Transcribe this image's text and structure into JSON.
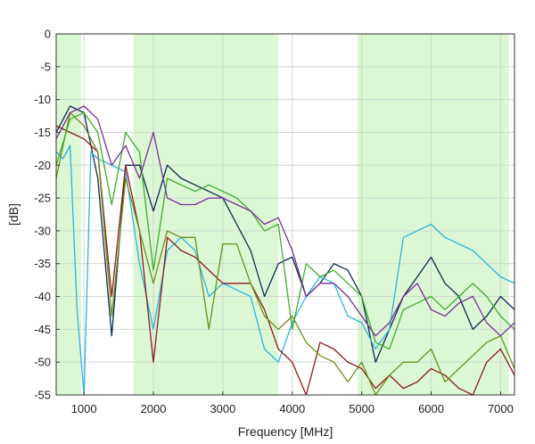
{
  "chart_data": {
    "type": "line",
    "xlabel": "Frequency [MHz]",
    "ylabel": "[dB]",
    "xlim": [
      600,
      7200
    ],
    "ylim": [
      -55,
      0
    ],
    "grid": true,
    "x_ticks": [
      1000,
      2000,
      3000,
      4000,
      5000,
      6000,
      7000
    ],
    "y_ticks": [
      0,
      -5,
      -10,
      -15,
      -20,
      -25,
      -30,
      -35,
      -40,
      -45,
      -50,
      -55
    ],
    "shaded_bands": [
      {
        "start": 600,
        "end": 960,
        "color": "#dcf7d4"
      },
      {
        "start": 1710,
        "end": 3800,
        "color": "#dcf7d4"
      },
      {
        "start": 4940,
        "end": 7120,
        "color": "#dcf7d4"
      }
    ],
    "series": [
      {
        "color": "#0d2a4f",
        "x": [
          600,
          800,
          1000,
          1200,
          1400,
          1600,
          1800,
          2000,
          2200,
          2400,
          2600,
          2800,
          3000,
          3200,
          3400,
          3600,
          3800,
          4000,
          4200,
          4400,
          4600,
          4800,
          5000,
          5200,
          5400,
          5600,
          5800,
          6000,
          6200,
          6400,
          6600,
          6800,
          7000,
          7200
        ],
        "y": [
          -15,
          -11,
          -12,
          -22,
          -46,
          -20,
          -20,
          -27,
          -20,
          -22,
          -23,
          -24,
          -25,
          -29,
          -33,
          -40,
          -35,
          -34,
          -40,
          -38,
          -35,
          -36,
          -40,
          -50,
          -45,
          -40,
          -37,
          -34,
          -38,
          -40,
          -45,
          -43,
          -40,
          -42
        ]
      },
      {
        "color": "#2bb3e0",
        "x": [
          600,
          700,
          800,
          900,
          1000,
          1100,
          1200,
          1400,
          1600,
          1800,
          2000,
          2200,
          2400,
          2600,
          2800,
          3000,
          3200,
          3400,
          3600,
          3800,
          4000,
          4200,
          4400,
          4600,
          4800,
          5000,
          5200,
          5400,
          5600,
          5800,
          6000,
          6200,
          6400,
          6600,
          6800,
          7000,
          7200
        ],
        "y": [
          -18,
          -19,
          -17,
          -42,
          -55,
          -18,
          -19,
          -20,
          -21,
          -35,
          -45,
          -33,
          -31,
          -33,
          -40,
          -38,
          -39,
          -40,
          -48,
          -50,
          -44,
          -40,
          -37,
          -38,
          -43,
          -44,
          -48,
          -45,
          -31,
          -30,
          -29,
          -31,
          -32,
          -33,
          -35,
          -37,
          -38
        ]
      },
      {
        "color": "#8b1a1a",
        "x": [
          600,
          800,
          1000,
          1200,
          1400,
          1600,
          1800,
          2000,
          2200,
          2400,
          2600,
          2800,
          3000,
          3200,
          3400,
          3600,
          3800,
          4000,
          4200,
          4400,
          4600,
          4800,
          5000,
          5200,
          5400,
          5600,
          5800,
          6000,
          6200,
          6400,
          6600,
          6800,
          7000,
          7200
        ],
        "y": [
          -14,
          -15,
          -16,
          -18,
          -40,
          -20,
          -30,
          -50,
          -31,
          -33,
          -34,
          -36,
          -38,
          -38,
          -38,
          -42,
          -48,
          -50,
          -55,
          -47,
          -48,
          -50,
          -51,
          -54,
          -52,
          -54,
          -53,
          -51,
          -52,
          -54,
          -55,
          -50,
          -48,
          -52
        ]
      },
      {
        "color": "#6c8f1c",
        "x": [
          600,
          800,
          1000,
          1200,
          1400,
          1600,
          1800,
          2000,
          2200,
          2400,
          2600,
          2800,
          3000,
          3200,
          3400,
          3600,
          3800,
          4000,
          4200,
          4400,
          4600,
          4800,
          5000,
          5200,
          5400,
          5600,
          5800,
          6000,
          6200,
          6400,
          6600,
          6800,
          7000,
          7200
        ],
        "y": [
          -22,
          -12,
          -14,
          -18,
          -43,
          -22,
          -30,
          -38,
          -30,
          -31,
          -31,
          -45,
          -32,
          -32,
          -38,
          -43,
          -45,
          -43,
          -47,
          -49,
          -50,
          -53,
          -50,
          -55,
          -52,
          -50,
          -50,
          -48,
          -53,
          -51,
          -49,
          -47,
          -46,
          -51
        ]
      },
      {
        "color": "#3dae2b",
        "x": [
          600,
          800,
          1000,
          1200,
          1400,
          1600,
          1800,
          2000,
          2200,
          2400,
          2600,
          2800,
          3000,
          3200,
          3400,
          3600,
          3800,
          4000,
          4200,
          4400,
          4600,
          4800,
          5000,
          5200,
          5400,
          5600,
          5800,
          6000,
          6200,
          6400,
          6600,
          6800,
          7000,
          7200
        ],
        "y": [
          -20,
          -13,
          -12,
          -15,
          -26,
          -15,
          -18,
          -36,
          -22,
          -23,
          -24,
          -23,
          -24,
          -25,
          -27,
          -30,
          -29,
          -45,
          -35,
          -37,
          -36,
          -38,
          -40,
          -47,
          -48,
          -42,
          -41,
          -40,
          -42,
          -40,
          -38,
          -40,
          -43,
          -45
        ]
      },
      {
        "color": "#7a2e9a",
        "x": [
          600,
          800,
          1000,
          1200,
          1400,
          1600,
          1800,
          2000,
          2200,
          2400,
          2600,
          2800,
          3000,
          3200,
          3400,
          3600,
          3800,
          4000,
          4200,
          4400,
          4600,
          4800,
          5000,
          5200,
          5400,
          5600,
          5800,
          6000,
          6200,
          6400,
          6600,
          6800,
          7000,
          7200
        ],
        "y": [
          -16,
          -12,
          -11,
          -13,
          -20,
          -17,
          -22,
          -15,
          -25,
          -26,
          -26,
          -25,
          -25,
          -26,
          -27,
          -29,
          -28,
          -33,
          -40,
          -38,
          -38,
          -40,
          -43,
          -46,
          -44,
          -40,
          -38,
          -42,
          -43,
          -41,
          -40,
          -44,
          -46,
          -44
        ]
      }
    ]
  }
}
